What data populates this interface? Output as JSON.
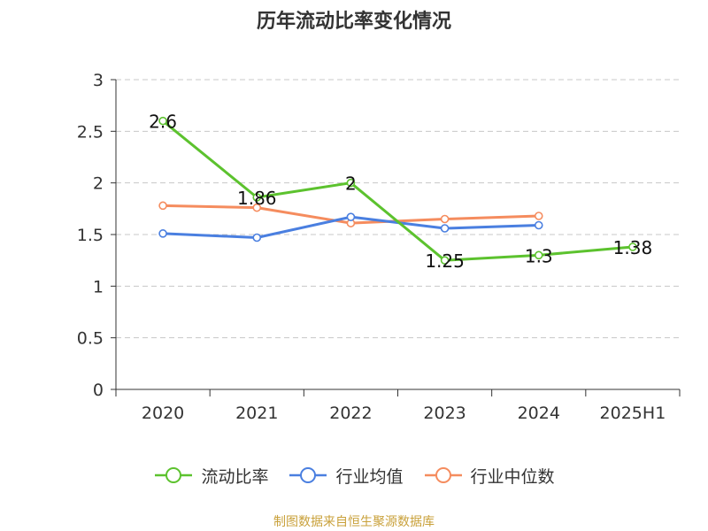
{
  "chart_data": {
    "type": "line",
    "title": "历年流动比率变化情况",
    "categories": [
      "2020",
      "2021",
      "2022",
      "2023",
      "2024",
      "2025H1"
    ],
    "y_ticks": [
      "0",
      "0.5",
      "1",
      "1.5",
      "2",
      "2.5",
      "3"
    ],
    "ylim": [
      0,
      3
    ],
    "grid": true,
    "legend_position": "bottom",
    "series": [
      {
        "name": "流动比率",
        "color": "#5cc22e",
        "values": [
          2.6,
          1.86,
          2,
          1.25,
          1.3,
          1.38
        ],
        "labels": [
          "2.6",
          "1.86",
          "2",
          "1.25",
          "1.3",
          "1.38"
        ]
      },
      {
        "name": "行业均值",
        "color": "#4a7fe0",
        "values": [
          1.51,
          1.47,
          1.67,
          1.56,
          1.59,
          null
        ]
      },
      {
        "name": "行业中位数",
        "color": "#f58c5e",
        "values": [
          1.78,
          1.76,
          1.61,
          1.65,
          1.68,
          null
        ]
      }
    ]
  },
  "source_note": "制图数据来自恒生聚源数据库"
}
